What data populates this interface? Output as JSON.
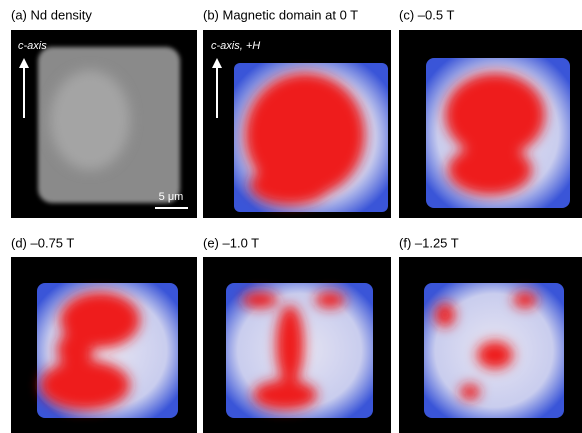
{
  "panels": [
    {
      "label": "(a) Nd density",
      "annotation": "c-axis",
      "scale_bar": "5 μm"
    },
    {
      "label": "(b) Magnetic domain at 0 T",
      "annotation": "c-axis, +H"
    },
    {
      "label": "(c) –0.5 T"
    },
    {
      "label": "(d) –0.75 T"
    },
    {
      "label": "(e) –1.0 T"
    },
    {
      "label": "(f) –1.25 T"
    }
  ]
}
